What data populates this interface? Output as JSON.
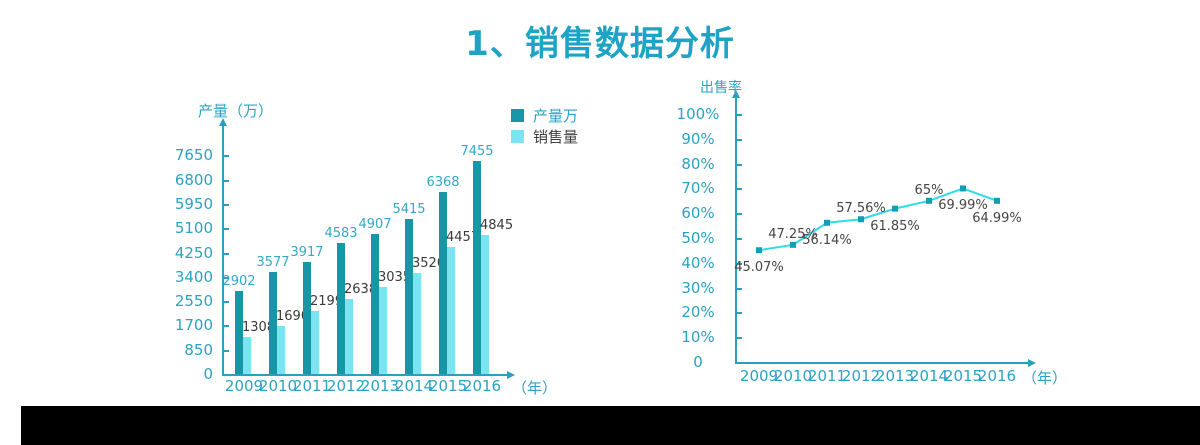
{
  "page": {
    "title": "1、销售数据分析"
  },
  "colors": {
    "title": "#1FA3C4",
    "axis": "#2AA0BE",
    "tick_text": "#2BA2C4",
    "production_bar": "#1796A6",
    "sales_bar": "#7BE4F3",
    "line": "#2EDBE9",
    "marker": "#0FA0B5",
    "bottom_bar": "#000000"
  },
  "chart_data": [
    {
      "type": "bar",
      "y_axis_title": "产量（万）",
      "x_axis_unit": "（年）",
      "categories": [
        "2009",
        "2010",
        "2011",
        "2012",
        "2013",
        "2014",
        "2015",
        "2016"
      ],
      "y_ticks": [
        0,
        850,
        1700,
        2550,
        3400,
        4250,
        5100,
        5950,
        6800,
        7650
      ],
      "ylim": [
        0,
        7650
      ],
      "grid": false,
      "legend_position": "top-right",
      "series": [
        {
          "name": "产量万",
          "color": "#1796A6",
          "label_color": "#35A8C6",
          "values": [
            2902,
            3577,
            3917,
            4583,
            4907,
            5415,
            6368,
            7455
          ]
        },
        {
          "name": "销售量",
          "color": "#7BE4F3",
          "label_color": "#3A3A3A",
          "values": [
            1308,
            1690,
            2199,
            2638,
            3035,
            3520,
            4457,
            4845
          ]
        }
      ]
    },
    {
      "type": "line",
      "y_axis_title": "出售率",
      "x_axis_unit": "（年）",
      "categories": [
        "2009",
        "2010",
        "2011",
        "2012",
        "2013",
        "2014",
        "2015",
        "2016"
      ],
      "y_ticks": [
        "0",
        "10%",
        "20%",
        "30%",
        "40%",
        "50%",
        "60%",
        "70%",
        "80%",
        "90%",
        "100%"
      ],
      "ylim": [
        0,
        100
      ],
      "grid": false,
      "series": [
        {
          "name": "出售率",
          "color": "#2EDBE9",
          "marker_color": "#0FA0B5",
          "values": [
            45.07,
            47.25,
            56.14,
            57.56,
            61.85,
            65,
            69.99,
            64.99
          ],
          "labels": [
            "45.07%",
            "47.25%",
            "56.14%",
            "57.56%",
            "61.85%",
            "65%",
            "69.99%",
            "64.99%"
          ],
          "label_positions": [
            "below",
            "above",
            "below",
            "above",
            "below",
            "above",
            "below",
            "below"
          ]
        }
      ]
    }
  ]
}
